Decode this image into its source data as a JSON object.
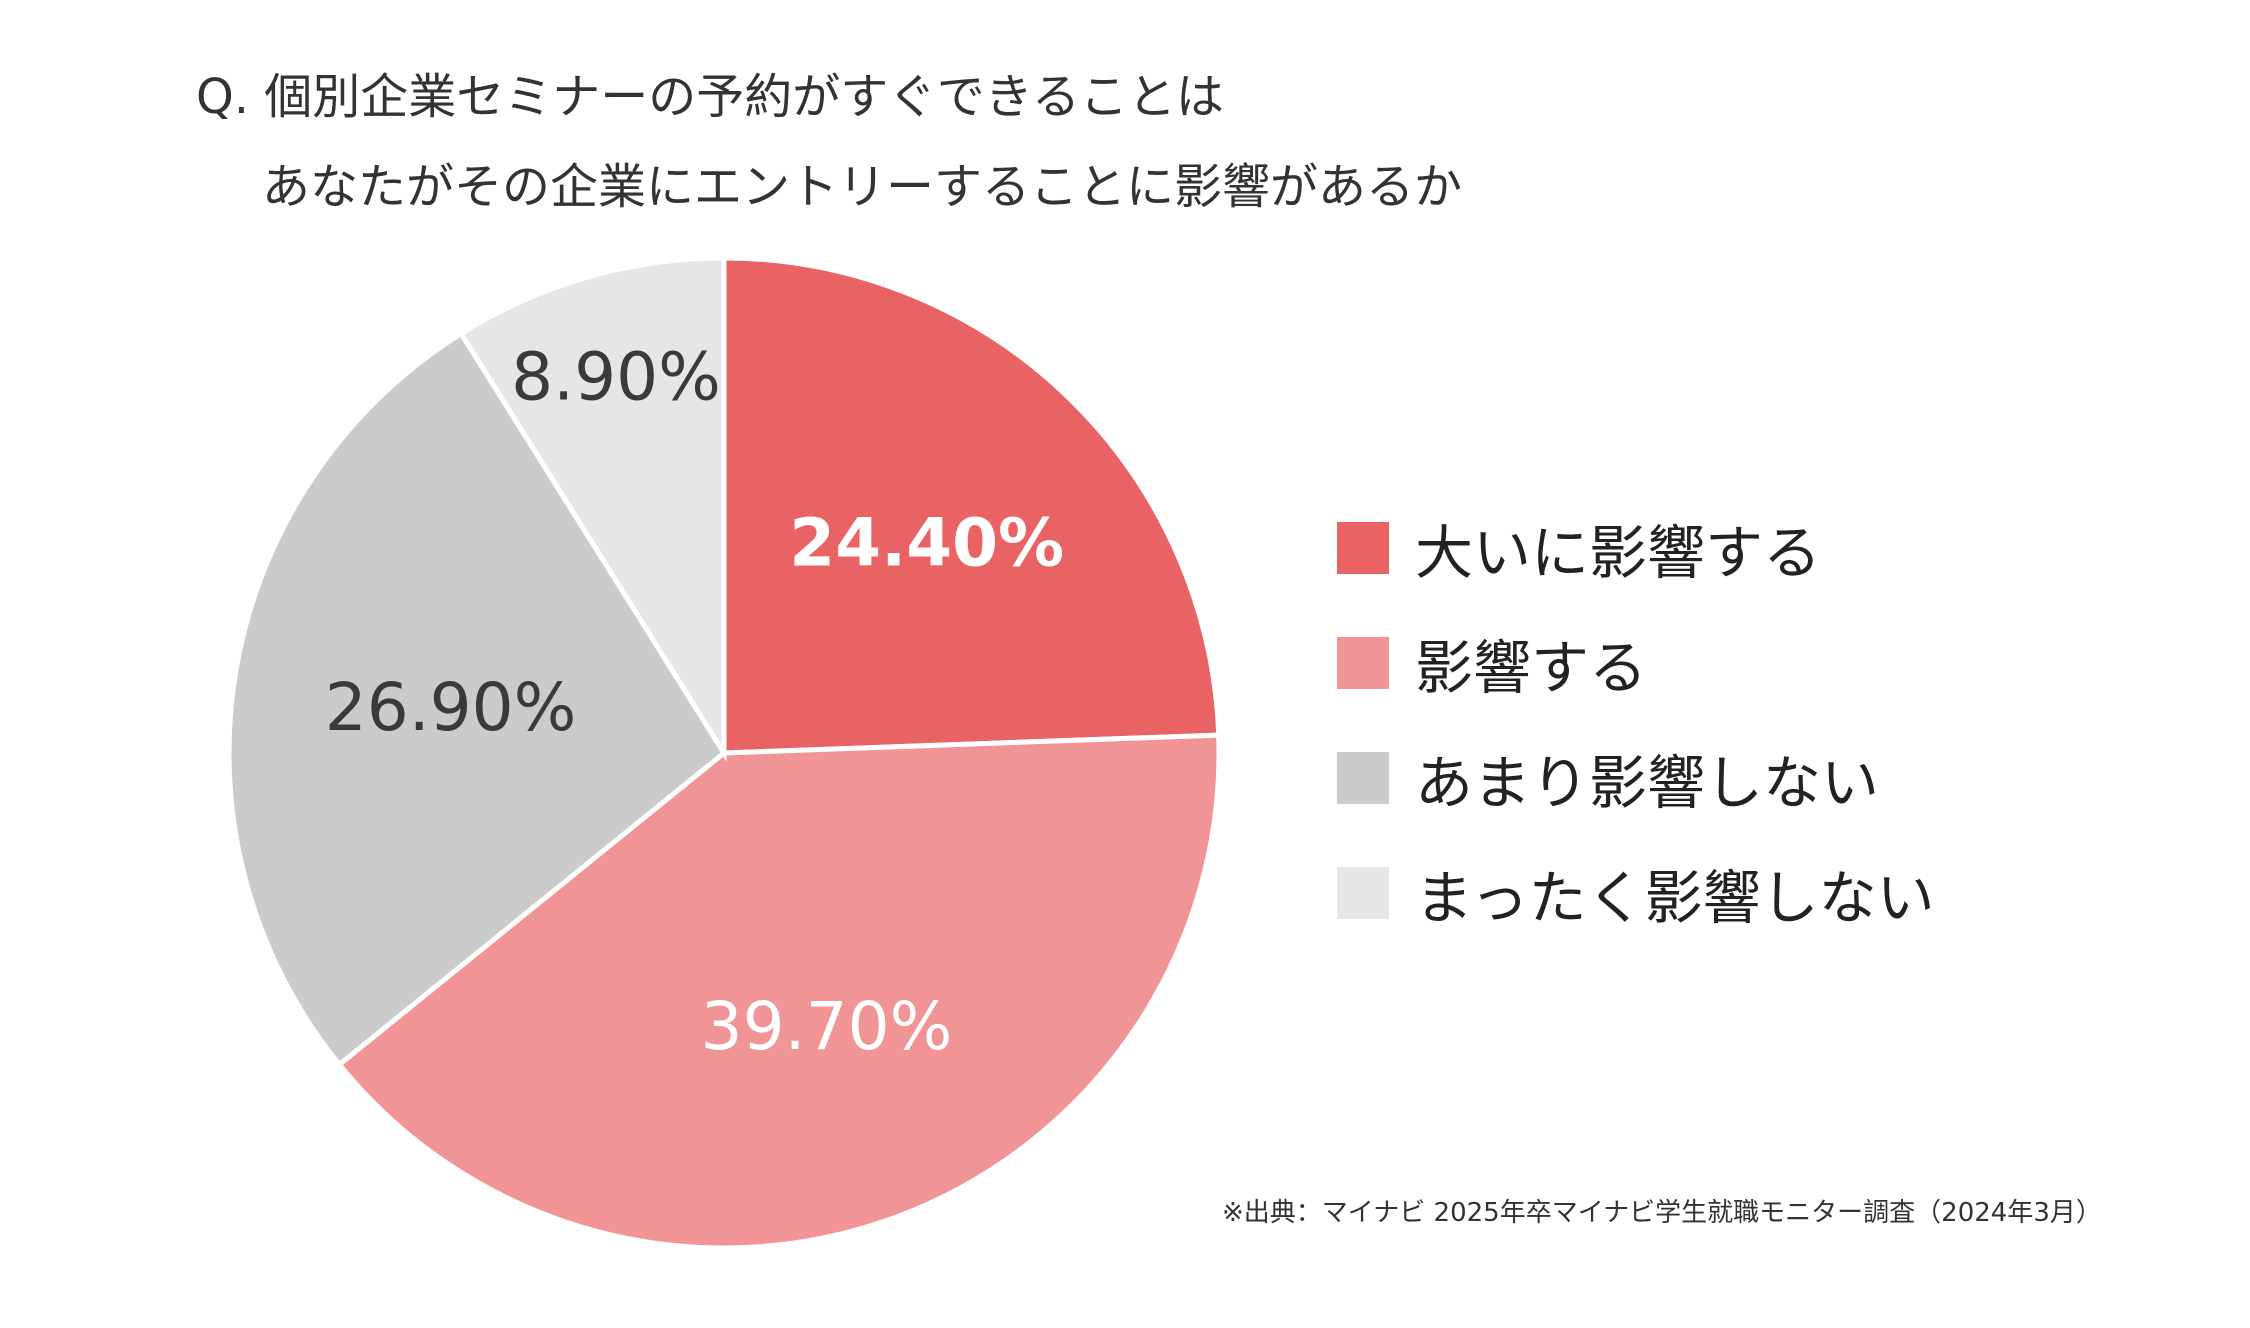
{
  "title": {
    "line1": "Q. 個別企業セミナーの予約がすぐできることは",
    "line2": "あなたがその企業にエントリーすることに影響があるか"
  },
  "chart_data": {
    "type": "pie",
    "title": "Q. 個別企業セミナーの予約がすぐできることは あなたがその企業にエントリーすることに影響があるか",
    "categories": [
      "大いに影響する",
      "影響する",
      "あまり影響しない",
      "まったく影響しない"
    ],
    "values": [
      24.4,
      39.7,
      26.9,
      8.9
    ],
    "labels": [
      "24.40%",
      "39.70%",
      "26.90%",
      "8.90%"
    ],
    "colors": [
      "#E96364",
      "#F09496",
      "#CBCBCB",
      "#E6E6E5"
    ],
    "label_colors": [
      "#FFFFFF",
      "#FFFFFF",
      "#3A3A3A",
      "#3A3A3A"
    ],
    "start_angle": "top",
    "direction": "clockwise",
    "legend_position": "right"
  },
  "source": "※出典：マイナビ 2025年卒マイナビ学生就職モニター調査（2024年3月）"
}
